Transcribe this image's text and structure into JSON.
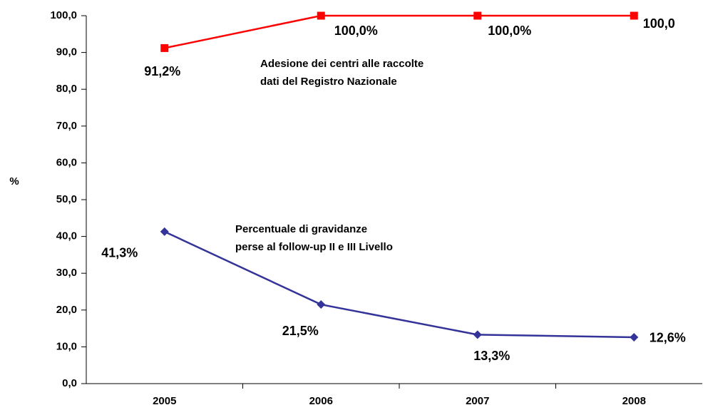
{
  "chart_data": {
    "type": "line",
    "y_label": "%",
    "categories": [
      "2005",
      "2006",
      "2007",
      "2008"
    ],
    "ylim": [
      0,
      100
    ],
    "yticks": [
      {
        "value": 0,
        "label": "0,0"
      },
      {
        "value": 10,
        "label": "10,0"
      },
      {
        "value": 20,
        "label": "20,0"
      },
      {
        "value": 30,
        "label": "30,0"
      },
      {
        "value": 40,
        "label": "40,0"
      },
      {
        "value": 50,
        "label": "50,0"
      },
      {
        "value": 60,
        "label": "60,0"
      },
      {
        "value": 70,
        "label": "70,0"
      },
      {
        "value": 80,
        "label": "80,0"
      },
      {
        "value": 90,
        "label": "90,0"
      },
      {
        "value": 100,
        "label": "100,0"
      }
    ],
    "grid": false,
    "series": [
      {
        "name": [
          "Adesione dei centri alle raccolte",
          "dati del Registro Nazionale"
        ],
        "color": "#ff0000",
        "marker": "square",
        "values": [
          91.2,
          100,
          100,
          100
        ],
        "value_labels": [
          "91,2%",
          "100,0%",
          "100,0%",
          "100,0"
        ]
      },
      {
        "name": [
          "Percentuale di gravidanze",
          "perse al follow-up II e III Livello"
        ],
        "color": "#333399",
        "marker": "diamond",
        "values": [
          41.3,
          21.5,
          13.3,
          12.6
        ],
        "value_labels": [
          "41,3%",
          "21,5%",
          "13,3%",
          "12,6%"
        ]
      }
    ]
  }
}
